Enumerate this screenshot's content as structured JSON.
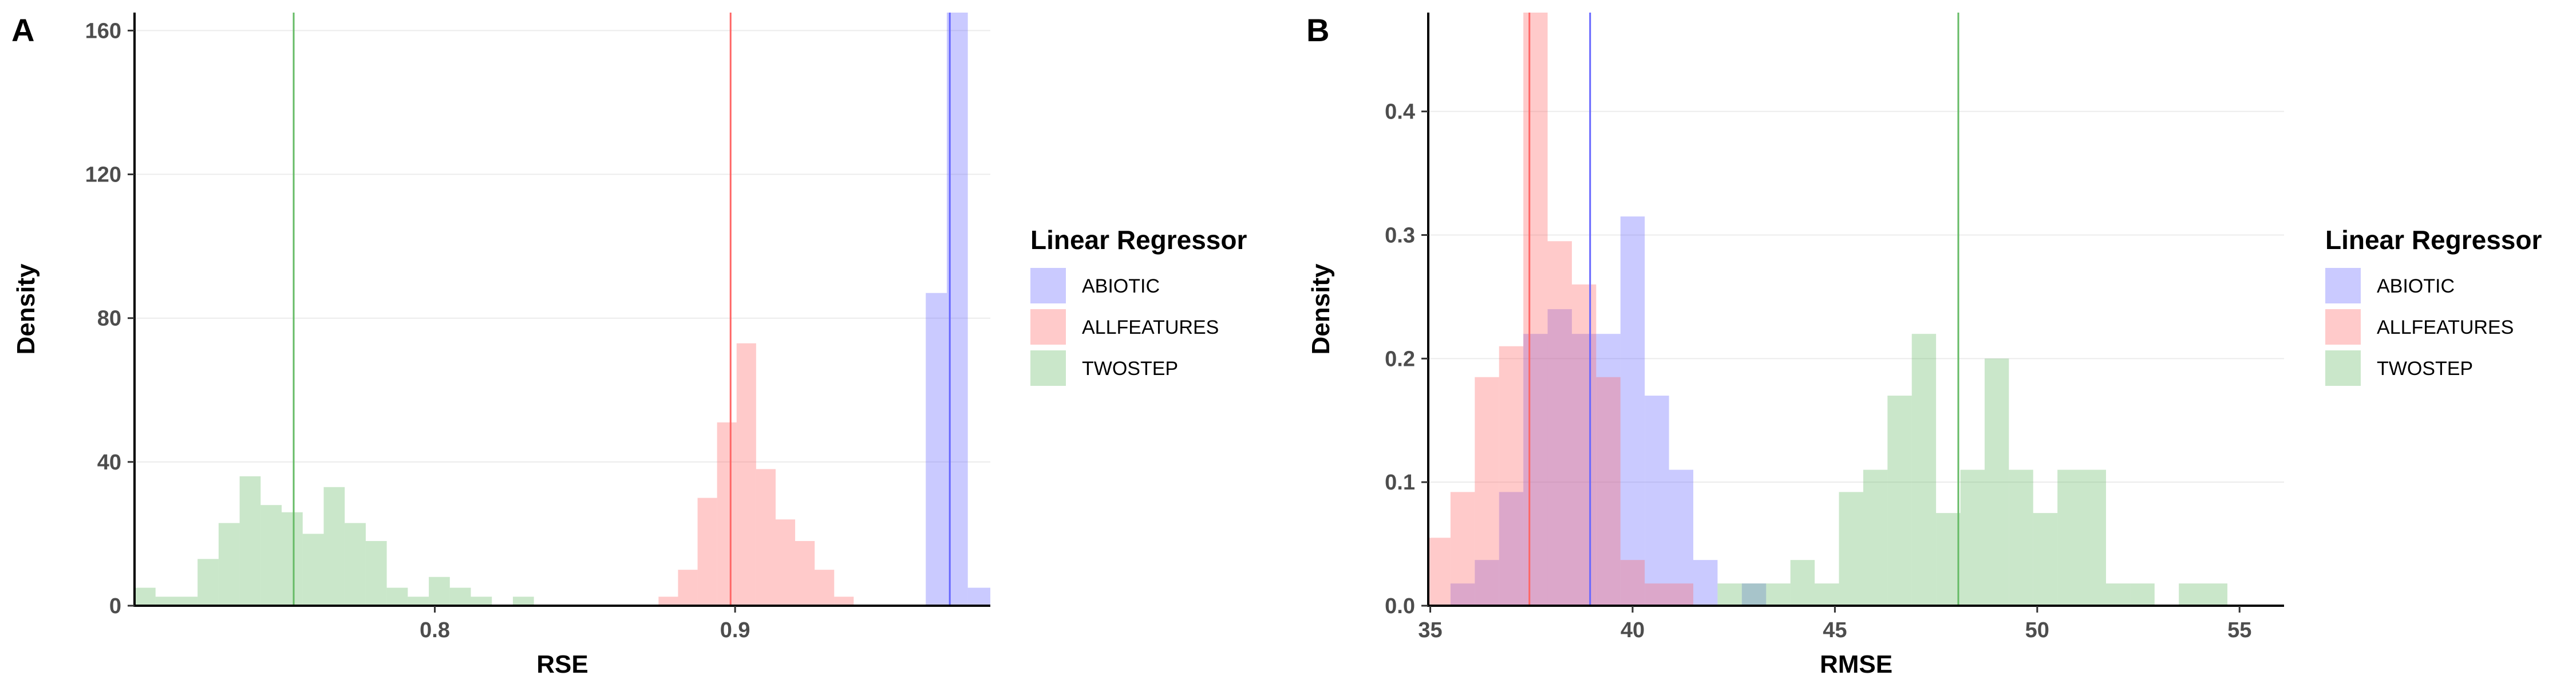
{
  "chart_data": [
    {
      "panel_label": "A",
      "type": "histogram",
      "xlabel": "RSE",
      "ylabel": "Density",
      "xlim": [
        0.7,
        0.985
      ],
      "ylim": [
        0,
        165
      ],
      "xticks": [
        {
          "v": 0.8,
          "label": "0.8"
        },
        {
          "v": 0.9,
          "label": "0.9"
        }
      ],
      "yticks": [
        {
          "v": 0,
          "label": "0"
        },
        {
          "v": 40,
          "label": "40"
        },
        {
          "v": 80,
          "label": "80"
        },
        {
          "v": 120,
          "label": "120"
        },
        {
          "v": 160,
          "label": "160"
        }
      ],
      "legend": {
        "title": "Linear Regressor",
        "items": [
          "ABIOTIC",
          "ALLFEATURES",
          "TWOSTEP"
        ]
      },
      "series": [
        {
          "name": "ABIOTIC",
          "color": "#6666ff",
          "mean": 0.9715,
          "bins": [
            [
              0.9635,
              0.9705,
              87
            ],
            [
              0.9705,
              0.9775,
              165
            ],
            [
              0.9775,
              0.985,
              5
            ]
          ]
        },
        {
          "name": "ALLFEATURES",
          "color": "#ff6666",
          "mean": 0.8985,
          "bins": [
            [
              0.8745,
              0.881,
              2.5
            ],
            [
              0.881,
              0.8875,
              10
            ],
            [
              0.8875,
              0.894,
              30
            ],
            [
              0.894,
              0.9005,
              51
            ],
            [
              0.9005,
              0.907,
              73
            ],
            [
              0.907,
              0.9135,
              38
            ],
            [
              0.9135,
              0.92,
              24
            ],
            [
              0.92,
              0.9265,
              18
            ],
            [
              0.9265,
              0.933,
              10
            ],
            [
              0.933,
              0.9395,
              2.5
            ]
          ]
        },
        {
          "name": "TWOSTEP",
          "color": "#66bb66",
          "mean": 0.753,
          "bins": [
            [
              0.7,
              0.707,
              5
            ],
            [
              0.707,
              0.714,
              2.5
            ],
            [
              0.714,
              0.721,
              2.5
            ],
            [
              0.721,
              0.728,
              13
            ],
            [
              0.728,
              0.735,
              23
            ],
            [
              0.735,
              0.742,
              36
            ],
            [
              0.742,
              0.749,
              28
            ],
            [
              0.749,
              0.756,
              26
            ],
            [
              0.756,
              0.763,
              20
            ],
            [
              0.763,
              0.77,
              33
            ],
            [
              0.77,
              0.777,
              23
            ],
            [
              0.777,
              0.784,
              18
            ],
            [
              0.784,
              0.791,
              5
            ],
            [
              0.791,
              0.798,
              2.5
            ],
            [
              0.798,
              0.805,
              8
            ],
            [
              0.805,
              0.812,
              5
            ],
            [
              0.812,
              0.819,
              2.5
            ],
            [
              0.826,
              0.833,
              2.5
            ]
          ]
        }
      ]
    },
    {
      "panel_label": "B",
      "type": "histogram",
      "xlabel": "RMSE",
      "ylabel": "Density",
      "xlim": [
        34.95,
        56.1
      ],
      "ylim": [
        0,
        0.48
      ],
      "xticks": [
        {
          "v": 35,
          "label": "35"
        },
        {
          "v": 40,
          "label": "40"
        },
        {
          "v": 45,
          "label": "45"
        },
        {
          "v": 50,
          "label": "50"
        },
        {
          "v": 55,
          "label": "55"
        }
      ],
      "yticks": [
        {
          "v": 0,
          "label": "0.0"
        },
        {
          "v": 0.1,
          "label": "0.1"
        },
        {
          "v": 0.2,
          "label": "0.2"
        },
        {
          "v": 0.3,
          "label": "0.3"
        },
        {
          "v": 0.4,
          "label": "0.4"
        }
      ],
      "legend": {
        "title": "Linear Regressor",
        "items": [
          "ABIOTIC",
          "ALLFEATURES",
          "TWOSTEP"
        ]
      },
      "series": [
        {
          "name": "ABIOTIC",
          "color": "#6666ff",
          "mean": 38.95,
          "bins": [
            [
              35.5,
              36.1,
              0.018
            ],
            [
              36.1,
              36.7,
              0.037
            ],
            [
              36.7,
              37.3,
              0.092
            ],
            [
              37.3,
              37.9,
              0.22
            ],
            [
              37.9,
              38.5,
              0.24
            ],
            [
              38.5,
              39.1,
              0.22
            ],
            [
              39.1,
              39.7,
              0.22
            ],
            [
              39.7,
              40.3,
              0.315
            ],
            [
              40.3,
              40.9,
              0.17
            ],
            [
              40.9,
              41.5,
              0.11
            ],
            [
              41.5,
              42.1,
              0.037
            ],
            [
              42.7,
              43.3,
              0.018
            ]
          ]
        },
        {
          "name": "ALLFEATURES",
          "color": "#ff6666",
          "mean": 37.45,
          "bins": [
            [
              34.9,
              35.5,
              0.055
            ],
            [
              35.5,
              36.1,
              0.092
            ],
            [
              36.1,
              36.7,
              0.185
            ],
            [
              36.7,
              37.3,
              0.21
            ],
            [
              37.3,
              37.9,
              0.48
            ],
            [
              37.9,
              38.5,
              0.295
            ],
            [
              38.5,
              39.1,
              0.26
            ],
            [
              39.1,
              39.7,
              0.185
            ],
            [
              39.7,
              40.3,
              0.037
            ],
            [
              40.3,
              40.9,
              0.018
            ],
            [
              40.9,
              41.5,
              0.018
            ]
          ]
        },
        {
          "name": "TWOSTEP",
          "color": "#66bb66",
          "mean": 48.05,
          "bins": [
            [
              42.1,
              42.7,
              0.018
            ],
            [
              42.7,
              43.3,
              0.018
            ],
            [
              43.3,
              43.9,
              0.018
            ],
            [
              43.9,
              44.5,
              0.037
            ],
            [
              44.5,
              45.1,
              0.018
            ],
            [
              45.1,
              45.7,
              0.092
            ],
            [
              45.7,
              46.3,
              0.11
            ],
            [
              46.3,
              46.9,
              0.17
            ],
            [
              46.9,
              47.5,
              0.22
            ],
            [
              47.5,
              48.1,
              0.075
            ],
            [
              48.1,
              48.7,
              0.11
            ],
            [
              48.7,
              49.3,
              0.2
            ],
            [
              49.3,
              49.9,
              0.11
            ],
            [
              49.9,
              50.5,
              0.075
            ],
            [
              50.5,
              51.1,
              0.11
            ],
            [
              51.1,
              51.7,
              0.11
            ],
            [
              51.7,
              52.3,
              0.018
            ],
            [
              52.3,
              52.9,
              0.018
            ],
            [
              53.5,
              54.1,
              0.018
            ],
            [
              54.1,
              54.7,
              0.018
            ]
          ]
        }
      ]
    }
  ]
}
